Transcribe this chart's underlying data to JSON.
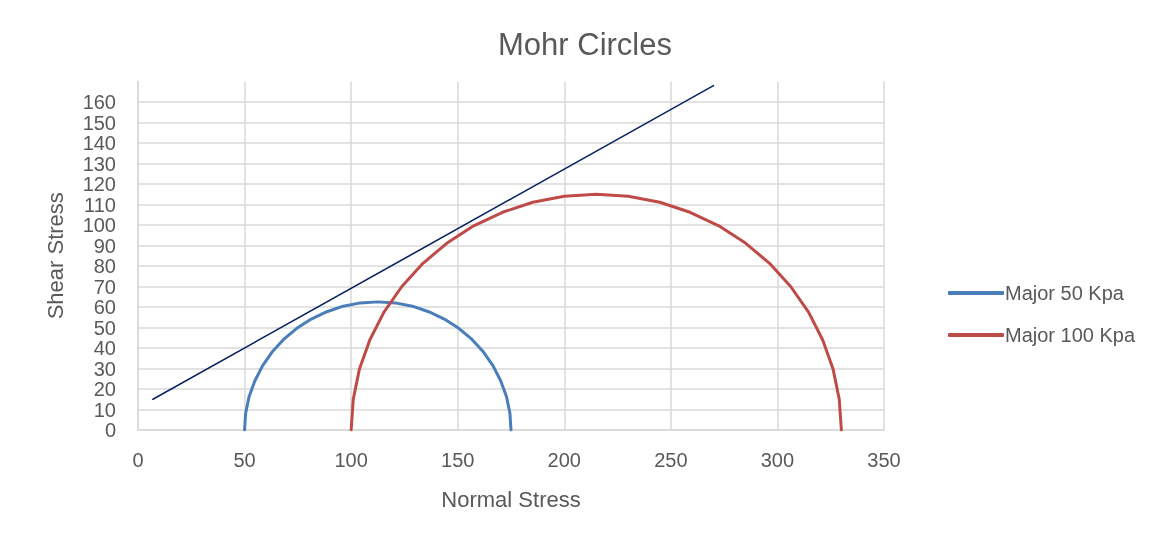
{
  "chart_data": {
    "type": "line",
    "title": "Mohr Circles",
    "xlabel": "Normal Stress",
    "ylabel": "Shear Stress",
    "xlim": [
      0,
      350
    ],
    "xticks": [
      0,
      50,
      100,
      150,
      200,
      250,
      300,
      350
    ],
    "ylim": [
      0,
      170
    ],
    "yticks": [
      0,
      10,
      20,
      30,
      40,
      50,
      60,
      70,
      80,
      90,
      100,
      110,
      120,
      130,
      140,
      150,
      160
    ],
    "grid": true,
    "legend": "right",
    "marker": "none",
    "line_style": "solid",
    "series": [
      {
        "name": "Major 50 Kpa",
        "color": "#4a7ebb",
        "x": [
          50,
          50.5,
          52.1,
          54.8,
          58.4,
          62.9,
          68.3,
          74.5,
          81.3,
          88.6,
          96.3,
          104.3,
          112.5,
          120.7,
          128.7,
          136.4,
          143.7,
          150.5,
          156.7,
          162.1,
          166.6,
          170.2,
          172.9,
          174.5,
          175
        ],
        "values": [
          0,
          8.2,
          16.2,
          23.9,
          31.3,
          38.0,
          44.2,
          49.6,
          54.1,
          57.7,
          60.4,
          62.0,
          62.5,
          62.0,
          60.4,
          57.7,
          54.1,
          49.6,
          44.2,
          38.0,
          31.3,
          23.9,
          16.2,
          8.2,
          0
        ]
      },
      {
        "name": "Major 100 Kpa",
        "color": "#be4b48",
        "x": [
          100,
          101.0,
          103.9,
          108.8,
          115.4,
          123.8,
          133.7,
          145.0,
          157.5,
          171.0,
          185.2,
          200.0,
          215,
          230.0,
          244.8,
          259.0,
          272.5,
          285.0,
          296.3,
          306.2,
          314.6,
          321.2,
          326.1,
          329.0,
          330
        ],
        "values": [
          0,
          15.0,
          29.8,
          44.0,
          57.5,
          70.0,
          81.3,
          91.2,
          99.6,
          106.2,
          111.1,
          114.0,
          115,
          114.0,
          111.1,
          106.2,
          99.6,
          91.2,
          81.3,
          70.0,
          57.5,
          44.0,
          29.8,
          15.0,
          0
        ]
      },
      {
        "color": "#0c2461",
        "x": [
          7,
          270
        ],
        "values": [
          15,
          168
        ]
      }
    ]
  }
}
